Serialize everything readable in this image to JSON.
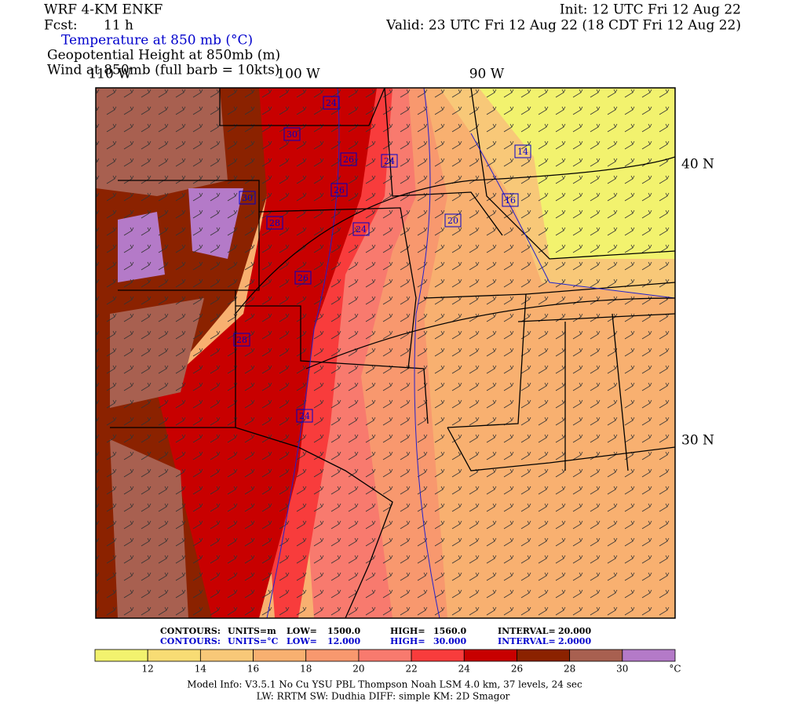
{
  "header": {
    "model": "WRF 4-KM ENKF",
    "forecast_label": "Fcst:",
    "forecast_value": "11 h",
    "init": "Init: 12 UTC Fri 12 Aug 22",
    "valid": "Valid: 23 UTC Fri 12 Aug 22 (18 CDT Fri 12 Aug 22)",
    "field_1": "Temperature at 850 mb (°C)",
    "field_2": "Geopotential Height at 850mb (m)",
    "field_3": "Wind at 850mb (full barb = 10kts)"
  },
  "map": {
    "longitude_labels": [
      "110 W",
      "100 W",
      "90 W"
    ],
    "latitude_labels": [
      "40 N",
      "30 N"
    ],
    "contour_labels": [
      "24",
      "30",
      "26",
      "24",
      "14",
      "26",
      "30",
      "16",
      "20",
      "28",
      "24",
      "26",
      "28",
      "24"
    ]
  },
  "contours": [
    {
      "color": "#000000",
      "label": "CONTOURS:",
      "units": "UNITS=m",
      "low_label": "LOW=",
      "low": "1500.0",
      "high_label": "HIGH=",
      "high": "1560.0",
      "interval_label": "INTERVAL=",
      "interval": "20.000"
    },
    {
      "color": "#0000cc",
      "label": "CONTOURS:",
      "units": "UNITS=°C",
      "low_label": "LOW=",
      "low": "12.000",
      "high_label": "HIGH=",
      "high": "30.000",
      "interval_label": "INTERVAL=",
      "interval": "2.0000"
    }
  ],
  "color_bar": {
    "colors": [
      "#f2f26e",
      "#f8dc74",
      "#f8c878",
      "#f8b070",
      "#f8986e",
      "#f87a6e",
      "#f83c3c",
      "#c80000",
      "#8b2200",
      "#a86050",
      "#b47ac8"
    ],
    "tick_labels": [
      "12",
      "14",
      "16",
      "18",
      "20",
      "22",
      "24",
      "26",
      "28",
      "30"
    ],
    "unit": "°C"
  },
  "footer": {
    "line_1": "Model Info: V3.5.1   No Cu   YSU PBL  Thompson    Noah LSM  4.0 km,  37 levels,   24 sec",
    "line_2": "LW: RRTM  SW: Dudhia  DIFF: simple  KM: 2D Smagor"
  }
}
